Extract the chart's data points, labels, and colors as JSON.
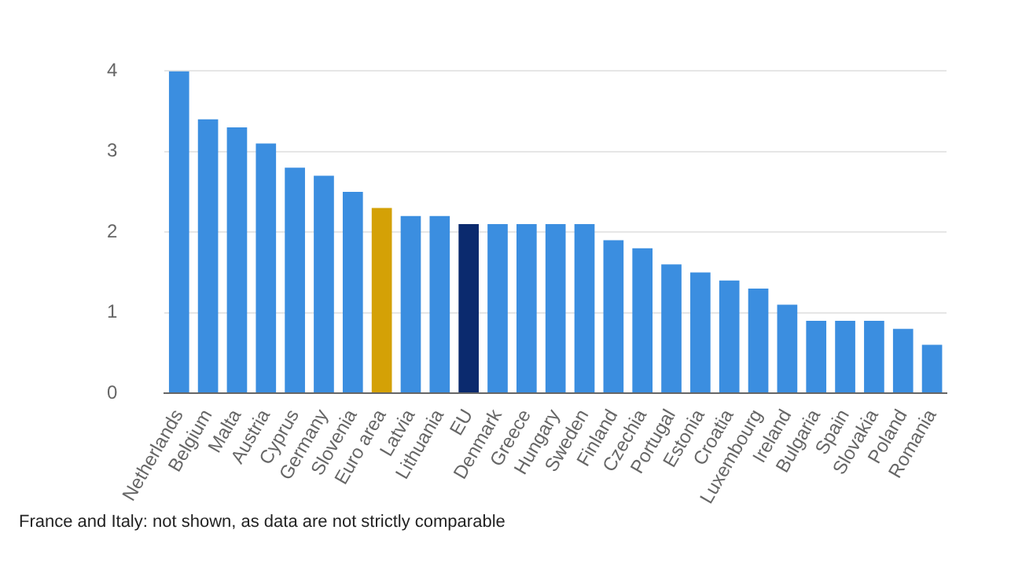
{
  "chart_data": {
    "type": "bar",
    "categories": [
      "Netherlands",
      "Belgium",
      "Malta",
      "Austria",
      "Cyprus",
      "Germany",
      "Slovenia",
      "Euro area",
      "Latvia",
      "Lithuania",
      "EU",
      "Denmark",
      "Greece",
      "Hungary",
      "Sweden",
      "Finland",
      "Czechia",
      "Portugal",
      "Estonia",
      "Croatia",
      "Luxembourg",
      "Ireland",
      "Bulgaria",
      "Spain",
      "Slovakia",
      "Poland",
      "Romania"
    ],
    "values": [
      4.0,
      3.4,
      3.3,
      3.1,
      2.8,
      2.7,
      2.5,
      2.3,
      2.2,
      2.2,
      2.1,
      2.1,
      2.1,
      2.1,
      2.1,
      1.9,
      1.8,
      1.6,
      1.5,
      1.4,
      1.3,
      1.1,
      0.9,
      0.9,
      0.9,
      0.8,
      0.6
    ],
    "colors": [
      "#3b8ee0",
      "#3b8ee0",
      "#3b8ee0",
      "#3b8ee0",
      "#3b8ee0",
      "#3b8ee0",
      "#3b8ee0",
      "#d4a106",
      "#3b8ee0",
      "#3b8ee0",
      "#0b2a6e",
      "#3b8ee0",
      "#3b8ee0",
      "#3b8ee0",
      "#3b8ee0",
      "#3b8ee0",
      "#3b8ee0",
      "#3b8ee0",
      "#3b8ee0",
      "#3b8ee0",
      "#3b8ee0",
      "#3b8ee0",
      "#3b8ee0",
      "#3b8ee0",
      "#3b8ee0",
      "#3b8ee0",
      "#3b8ee0"
    ],
    "ylim": [
      0,
      4
    ],
    "yticks": [
      0,
      1,
      2,
      3,
      4
    ],
    "grid": "y",
    "annotations": [
      "France and Italy: not shown, as data are not strictly comparable"
    ]
  }
}
